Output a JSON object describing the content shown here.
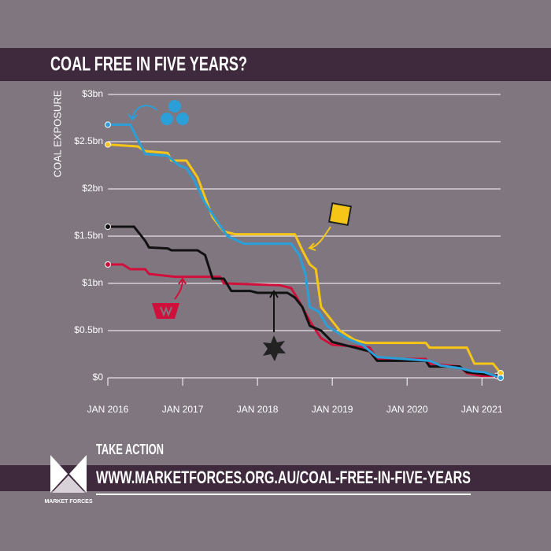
{
  "chart_data": {
    "type": "line",
    "title": "COAL FREE IN FIVE YEARS?",
    "ylabel": "COAL EXPOSURE",
    "xlim": [
      2016,
      2021.25
    ],
    "ylim": [
      0,
      3
    ],
    "xticks": [
      {
        "value": 2016,
        "label": "JAN 2016"
      },
      {
        "value": 2017,
        "label": "JAN 2017"
      },
      {
        "value": 2018,
        "label": "JAN 2018"
      },
      {
        "value": 2019,
        "label": "JAN 2019"
      },
      {
        "value": 2020,
        "label": "JAN 2020"
      },
      {
        "value": 2021,
        "label": "JAN 2021"
      }
    ],
    "yticks": [
      {
        "value": 0,
        "label": "$0"
      },
      {
        "value": 0.5,
        "label": "$0.5bn"
      },
      {
        "value": 1,
        "label": "$1bn"
      },
      {
        "value": 1.5,
        "label": "$1.5bn"
      },
      {
        "value": 2,
        "label": "$2bn"
      },
      {
        "value": 2.5,
        "label": "$2.5bn"
      },
      {
        "value": 3,
        "label": "$3bn"
      }
    ],
    "grid": true,
    "series": [
      {
        "color": "#2a9fd8",
        "x": [
          2016,
          2016.3,
          2016.35,
          2016.5,
          2016.8,
          2016.95,
          2017.05,
          2017.15,
          2017.3,
          2017.45,
          2017.6,
          2017.82,
          2018.45,
          2018.56,
          2018.64,
          2018.7,
          2018.82,
          2018.93,
          2019.03,
          2019.19,
          2019.4,
          2019.6,
          2020.3,
          2020.45,
          2020.72,
          2020.87,
          2021.03,
          2021.25
        ],
        "values": [
          2.68,
          2.68,
          2.6,
          2.37,
          2.35,
          2.25,
          2.22,
          2.1,
          1.85,
          1.67,
          1.5,
          1.42,
          1.42,
          1.3,
          1.1,
          0.75,
          0.7,
          0.55,
          0.5,
          0.42,
          0.35,
          0.22,
          0.18,
          0.13,
          0.1,
          0.07,
          0.06,
          0
        ]
      },
      {
        "color": "#f5c518",
        "x": [
          2016,
          2016.4,
          2016.5,
          2016.8,
          2016.85,
          2017.05,
          2017.2,
          2017.4,
          2017.55,
          2017.7,
          2018.5,
          2018.6,
          2018.7,
          2018.78,
          2018.85,
          2019,
          2019.1,
          2019.3,
          2019.45,
          2020.25,
          2020.3,
          2020.8,
          2020.9,
          2021.15,
          2021.25
        ],
        "values": [
          2.47,
          2.45,
          2.4,
          2.38,
          2.3,
          2.3,
          2.12,
          1.7,
          1.55,
          1.52,
          1.52,
          1.35,
          1.2,
          1.15,
          0.75,
          0.6,
          0.5,
          0.4,
          0.37,
          0.37,
          0.32,
          0.32,
          0.15,
          0.15,
          0.05
        ]
      },
      {
        "color": "#111111",
        "x": [
          2016,
          2016.35,
          2016.5,
          2016.55,
          2016.8,
          2016.85,
          2017.2,
          2017.3,
          2017.4,
          2017.55,
          2017.65,
          2017.9,
          2018,
          2018.4,
          2018.5,
          2018.6,
          2018.7,
          2018.85,
          2019,
          2019.3,
          2019.5,
          2019.6,
          2020.25,
          2020.3,
          2020.7,
          2020.8,
          2021.25
        ],
        "values": [
          1.6,
          1.6,
          1.45,
          1.38,
          1.37,
          1.35,
          1.35,
          1.3,
          1.05,
          1.05,
          0.92,
          0.92,
          0.9,
          0.9,
          0.85,
          0.75,
          0.55,
          0.5,
          0.38,
          0.32,
          0.28,
          0.18,
          0.18,
          0.12,
          0.12,
          0.06,
          0.02
        ]
      },
      {
        "color": "#d0103a",
        "x": [
          2016,
          2016.2,
          2016.3,
          2016.5,
          2016.55,
          2016.9,
          2017.5,
          2017.55,
          2018.3,
          2018.45,
          2018.55,
          2018.7,
          2018.85,
          2019,
          2019.5,
          2019.6,
          2020.25,
          2020.3,
          2020.7,
          2020.8,
          2021,
          2021.2
        ],
        "values": [
          1.2,
          1.2,
          1.15,
          1.15,
          1.1,
          1.07,
          1.07,
          1,
          0.98,
          0.95,
          0.82,
          0.6,
          0.42,
          0.35,
          0.32,
          0.2,
          0.2,
          0.15,
          0.12,
          0.05,
          0.02,
          0.02
        ]
      }
    ]
  },
  "footer": {
    "action": "TAKE ACTION",
    "url": "WWW.MARKETFORCES.ORG.AU/COAL-FREE-IN-FIVE-YEARS",
    "brand": "MARKET FORCES"
  }
}
